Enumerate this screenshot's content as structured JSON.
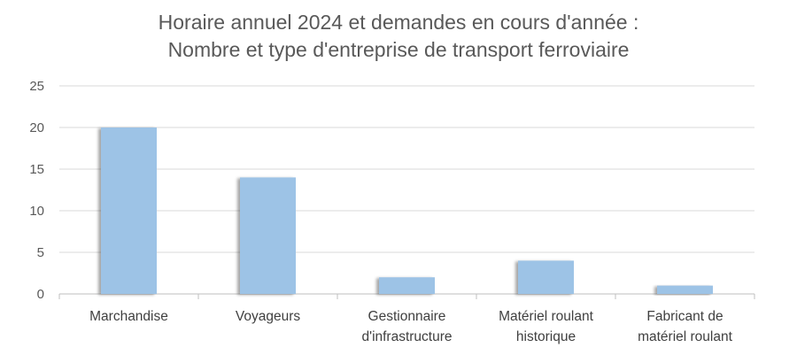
{
  "chart_data": {
    "type": "bar",
    "title_line1": "Horaire annuel 2024 et demandes en cours d'année :",
    "title_line2": "Nombre et type d'entreprise de transport ferroviaire",
    "categories": [
      [
        "Marchandise"
      ],
      [
        "Voyageurs"
      ],
      [
        "Gestionnaire",
        "d'infrastructure"
      ],
      [
        "Matériel roulant",
        "historique"
      ],
      [
        "Fabricant de",
        "matériel roulant"
      ]
    ],
    "values": [
      20,
      14,
      2,
      4,
      1
    ],
    "ylim": [
      0,
      25
    ],
    "yticks": [
      0,
      5,
      10,
      15,
      20,
      25
    ],
    "grid": true,
    "bar_color": "#9DC3E6",
    "grid_color": "#D9D9D9",
    "text_color": "#595959"
  }
}
